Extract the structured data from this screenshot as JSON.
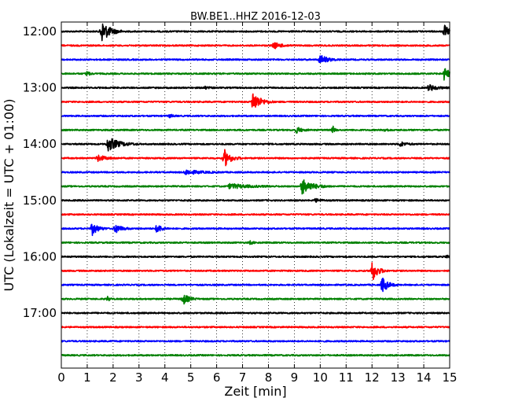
{
  "chart_data": {
    "type": "line",
    "title": "BW.BE1..HHZ 2016-12-03",
    "xlabel": "Zeit  [min]",
    "ylabel": "UTC (Lokalzeit = UTC + 01:00)",
    "xlim": [
      0,
      15
    ],
    "x_ticks": [
      "0",
      "1",
      "2",
      "3",
      "4",
      "5",
      "6",
      "7",
      "8",
      "9",
      "10",
      "11",
      "12",
      "13",
      "14",
      "15"
    ],
    "y_ticks": [
      "12:00",
      "13:00",
      "14:00",
      "15:00",
      "16:00",
      "17:00"
    ],
    "grid": true,
    "trace_colors": [
      "#000000",
      "#ff0000",
      "#0000ff",
      "#008000"
    ],
    "series": [
      {
        "start": "12:00",
        "events": [
          {
            "t": 1.55,
            "amp": 14,
            "dur": 0.9
          },
          {
            "t": 14.8,
            "amp": 8,
            "dur": 0.5
          }
        ]
      },
      {
        "start": "12:15",
        "events": [
          {
            "t": 8.2,
            "amp": 4,
            "dur": 0.8
          }
        ]
      },
      {
        "start": "12:30",
        "events": [
          {
            "t": 10.0,
            "amp": 6,
            "dur": 0.8
          }
        ]
      },
      {
        "start": "12:45",
        "events": [
          {
            "t": 1.0,
            "amp": 3,
            "dur": 0.3
          },
          {
            "t": 14.8,
            "amp": 9,
            "dur": 0.5
          }
        ]
      },
      {
        "start": "13:00",
        "events": [
          {
            "t": 5.5,
            "amp": 2,
            "dur": 0.4
          },
          {
            "t": 14.2,
            "amp": 4,
            "dur": 0.8
          }
        ]
      },
      {
        "start": "13:15",
        "events": [
          {
            "t": 7.4,
            "amp": 13,
            "dur": 0.8
          }
        ]
      },
      {
        "start": "13:30",
        "events": [
          {
            "t": 4.2,
            "amp": 2,
            "dur": 0.3
          }
        ]
      },
      {
        "start": "13:45",
        "events": [
          {
            "t": 9.1,
            "amp": 4,
            "dur": 0.5
          },
          {
            "t": 10.5,
            "amp": 4,
            "dur": 0.2
          },
          {
            "t": 12.5,
            "amp": 2,
            "dur": 0.3
          }
        ]
      },
      {
        "start": "14:00",
        "events": [
          {
            "t": 1.8,
            "amp": 9,
            "dur": 1.2
          },
          {
            "t": 13.1,
            "amp": 3,
            "dur": 0.6
          }
        ]
      },
      {
        "start": "14:15",
        "events": [
          {
            "t": 1.4,
            "amp": 4,
            "dur": 0.9
          },
          {
            "t": 6.3,
            "amp": 11,
            "dur": 0.7
          }
        ]
      },
      {
        "start": "14:30",
        "events": [
          {
            "t": 4.8,
            "amp": 3,
            "dur": 1.5
          }
        ]
      },
      {
        "start": "14:45",
        "events": [
          {
            "t": 6.5,
            "amp": 3,
            "dur": 2.0
          },
          {
            "t": 9.3,
            "amp": 10,
            "dur": 1.1
          }
        ]
      },
      {
        "start": "15:00",
        "events": [
          {
            "t": 9.8,
            "amp": 2,
            "dur": 0.6
          }
        ]
      },
      {
        "start": "15:15",
        "events": []
      },
      {
        "start": "15:30",
        "events": [
          {
            "t": 1.2,
            "amp": 8,
            "dur": 0.6
          },
          {
            "t": 2.1,
            "amp": 6,
            "dur": 0.6
          },
          {
            "t": 3.7,
            "amp": 6,
            "dur": 0.5
          }
        ]
      },
      {
        "start": "15:45",
        "events": [
          {
            "t": 7.3,
            "amp": 2,
            "dur": 0.3
          }
        ]
      },
      {
        "start": "16:00",
        "events": [
          {
            "t": 14.9,
            "amp": 2,
            "dur": 0.2
          }
        ]
      },
      {
        "start": "16:15",
        "events": [
          {
            "t": 12.0,
            "amp": 14,
            "dur": 0.6
          }
        ]
      },
      {
        "start": "16:30",
        "events": [
          {
            "t": 12.4,
            "amp": 10,
            "dur": 0.6
          }
        ]
      },
      {
        "start": "16:45",
        "events": [
          {
            "t": 1.8,
            "amp": 3,
            "dur": 0.2
          },
          {
            "t": 4.7,
            "amp": 7,
            "dur": 0.6
          }
        ]
      },
      {
        "start": "17:00",
        "events": []
      },
      {
        "start": "17:15",
        "events": []
      },
      {
        "start": "17:30",
        "events": []
      },
      {
        "start": "17:45",
        "events": []
      }
    ]
  }
}
